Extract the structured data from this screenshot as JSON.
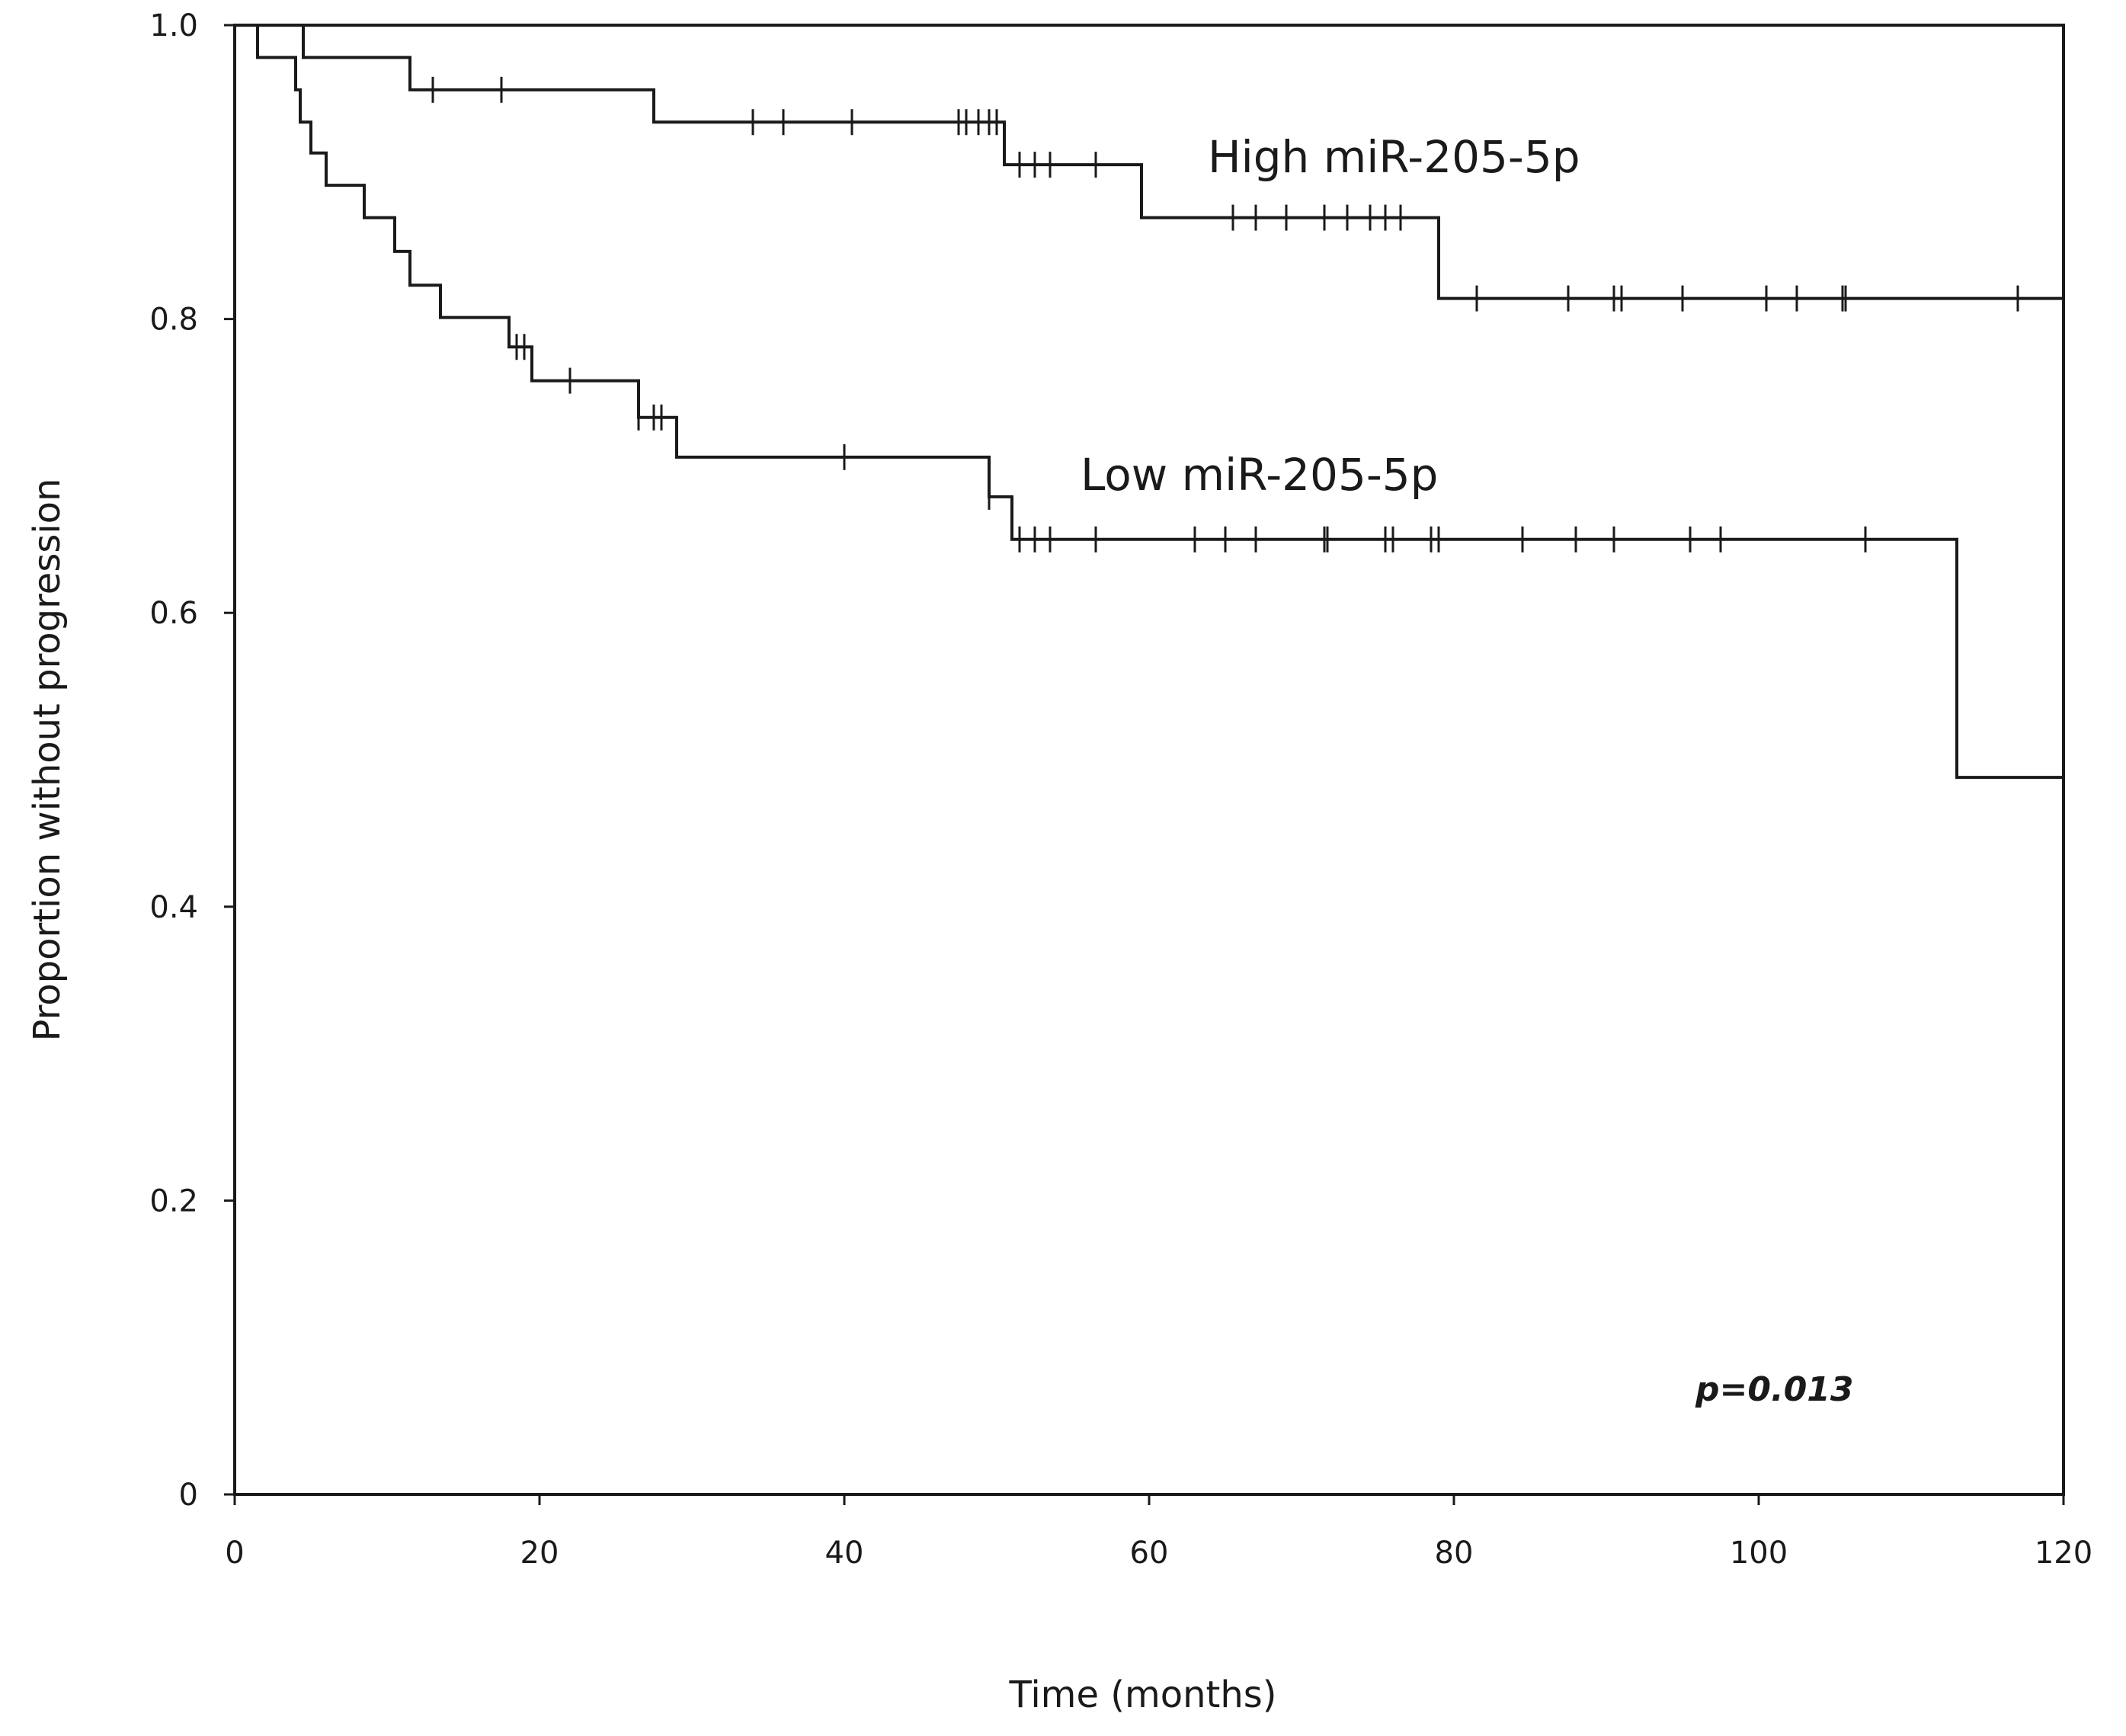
{
  "chart_data": {
    "type": "line",
    "subtype": "kaplan-meier",
    "xlabel": "Time (months)",
    "ylabel": "Proportion without progression",
    "xlim": [
      0,
      120
    ],
    "ylim": [
      0,
      1.0
    ],
    "x_ticks": [
      0,
      20,
      40,
      60,
      80,
      100,
      120
    ],
    "x_tick_labels": [
      "0",
      "20",
      "40",
      "60",
      "80",
      "100",
      "120"
    ],
    "y_ticks": [
      0,
      0.2,
      0.4,
      0.6,
      0.8,
      1.0
    ],
    "y_tick_labels": [
      "0",
      "0.2",
      "0.4",
      "0.6",
      "0.8",
      "1.0"
    ],
    "grid": false,
    "annotation": "p=0.013",
    "series": [
      {
        "name": "High miR-205-5p",
        "label": "High miR-205-5p",
        "steps": [
          [
            0,
            1.0
          ],
          [
            4.5,
            0.978
          ],
          [
            11.5,
            0.956
          ],
          [
            27.5,
            0.934
          ],
          [
            50.5,
            0.905
          ],
          [
            59.5,
            0.869
          ],
          [
            79.0,
            0.814
          ],
          [
            120,
            0.814
          ]
        ],
        "censor_times": [
          13,
          17.5,
          34,
          36,
          40.5,
          47.5,
          48,
          48.8,
          49.5,
          50,
          51.5,
          52.5,
          53.5,
          56.5,
          65.5,
          67,
          69,
          71.5,
          73,
          74.5,
          75.5,
          76.5,
          81.5,
          87.5,
          90.5,
          91,
          95,
          100.5,
          102.5,
          105.5,
          105.7,
          117
        ]
      },
      {
        "name": "Low miR-205-5p",
        "label": "Low miR-205-5p",
        "steps": [
          [
            0,
            1.0
          ],
          [
            1.5,
            0.978
          ],
          [
            4.0,
            0.956
          ],
          [
            4.3,
            0.934
          ],
          [
            5.0,
            0.913
          ],
          [
            6.0,
            0.891
          ],
          [
            8.5,
            0.869
          ],
          [
            10.5,
            0.846
          ],
          [
            11.5,
            0.823
          ],
          [
            13.5,
            0.801
          ],
          [
            18.0,
            0.781
          ],
          [
            19.5,
            0.758
          ],
          [
            26.5,
            0.733
          ],
          [
            29.0,
            0.706
          ],
          [
            49.5,
            0.679
          ],
          [
            51.0,
            0.65
          ],
          [
            113.0,
            0.488
          ],
          [
            120,
            0.488
          ]
        ],
        "censor_times": [
          18.5,
          19,
          22,
          26.5,
          27.5,
          28,
          40,
          49.5,
          51.5,
          52.5,
          53.5,
          56.5,
          63,
          65,
          67,
          71.5,
          71.7,
          75.5,
          76,
          78.5,
          79,
          84.5,
          88,
          90.5,
          95.5,
          97.5,
          107
        ]
      }
    ]
  }
}
